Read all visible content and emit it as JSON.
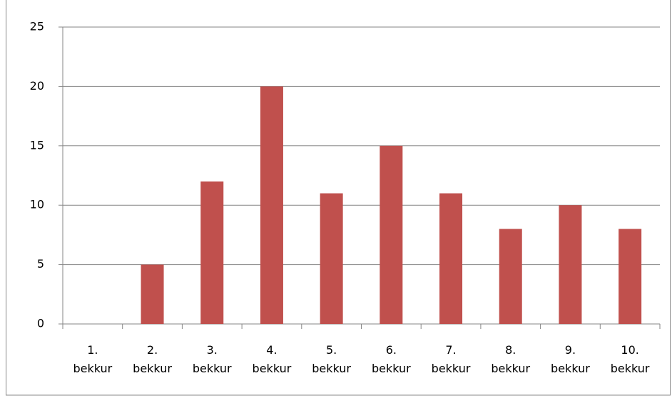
{
  "chart_data": {
    "type": "bar",
    "categories": [
      "1. bekkur",
      "2. bekkur",
      "3. bekkur",
      "4. bekkur",
      "5. bekkur",
      "6. bekkur",
      "7. bekkur",
      "8. bekkur",
      "9. bekkur",
      "10. bekkur"
    ],
    "values": [
      0,
      5,
      12,
      20,
      11,
      15,
      11,
      8,
      10,
      8
    ],
    "color": "#c0504d",
    "ylim": [
      0,
      25
    ],
    "yticks": [
      0,
      5,
      10,
      15,
      20,
      25
    ],
    "grid": true
  }
}
